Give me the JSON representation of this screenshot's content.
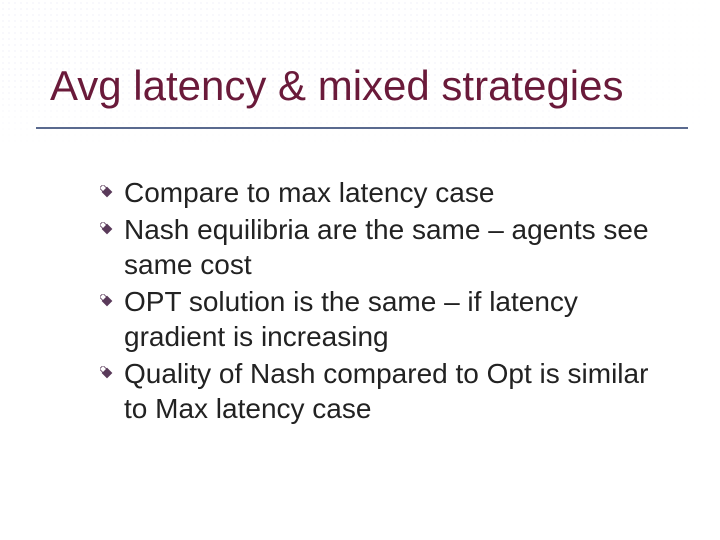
{
  "slide": {
    "title": "Avg latency & mixed strategies",
    "title_color": "#6a1a3a",
    "title_fontsize": 42,
    "underline_color": "#5a6a8f",
    "body_color": "#222222",
    "body_fontsize": 28,
    "bullet_fill": "#5a3a5a",
    "background": "#ffffff",
    "items": [
      "Compare to max latency case",
      "Nash equilibria are the same – agents see same cost",
      "OPT solution is the same – if latency gradient is increasing",
      "Quality of Nash compared to Opt is similar to Max latency case"
    ]
  }
}
